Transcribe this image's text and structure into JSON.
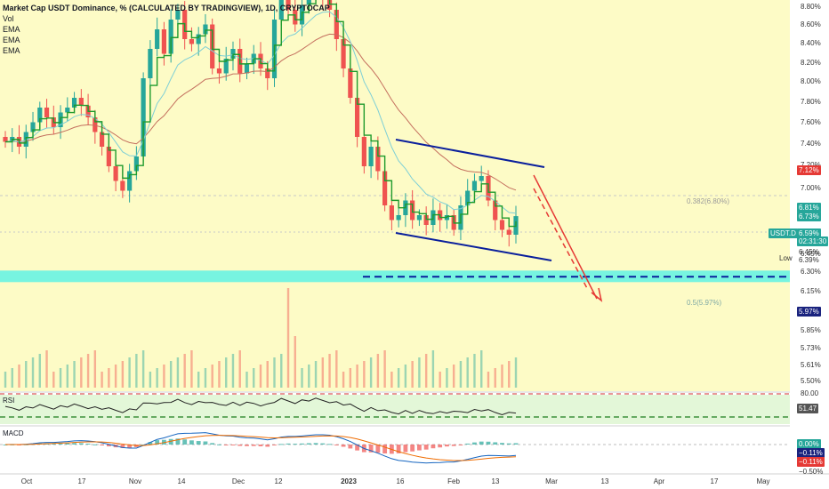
{
  "legend": {
    "title": "Market Cap USDT Dominance, % (CALCULATED BY TRADINGVIEW), 1D, CRYPTOCAP",
    "lines": [
      "Vol",
      "EMA",
      "EMA",
      "EMA"
    ]
  },
  "colors": {
    "up": "#26a69a",
    "down": "#ef5350",
    "ema_fast": "#1f9b2d",
    "ema_mid": "#7ecfd6",
    "ema_slow": "#c46f5e",
    "channel": "#0a1f9c",
    "arrow": "#e53935",
    "fib": "#5ff2e4",
    "bg": "#fdfbc6"
  },
  "price_axis": {
    "ticks": [
      "8.80%",
      "8.60%",
      "8.40%",
      "8.20%",
      "8.00%",
      "7.80%",
      "7.60%",
      "7.40%",
      "7.20%",
      "7.00%",
      "6.80%",
      "6.60%",
      "6.45%",
      "6.30%",
      "6.15%",
      "6.00%",
      "5.85%",
      "5.73%",
      "5.61%",
      "5.50%"
    ],
    "tags": [
      {
        "text": "7.12%",
        "kind": "red"
      },
      {
        "text": "6.81%",
        "kind": "green"
      },
      {
        "text": "6.73%",
        "kind": "green"
      },
      {
        "text": "6.59%",
        "kind": "green"
      },
      {
        "text": "02:31:30",
        "kind": "green"
      },
      {
        "text": "6.45%",
        "kind": "plain"
      },
      {
        "text": "6.39%",
        "kind": "plain"
      },
      {
        "text": "5.97%",
        "kind": "navy"
      }
    ],
    "symbol_label": "USDT.D",
    "low_label": "Low"
  },
  "fib_levels": [
    {
      "label": "0.382(6.80%)"
    },
    {
      "label": "0.5(5.97%)"
    }
  ],
  "rsi": {
    "label": "RSI",
    "upper": "80.00",
    "value": "51.47"
  },
  "macd": {
    "label": "MACD",
    "tags": [
      "0.00%",
      "−0.11%",
      "−0.11%",
      "−0.50%"
    ]
  },
  "x_axis": {
    "labels": [
      "Oct",
      "17",
      "Nov",
      "14",
      "Dec",
      "12",
      "2023",
      "16",
      "Feb",
      "13",
      "Mar",
      "13",
      "Apr",
      "17",
      "May"
    ],
    "bold": "2023"
  },
  "chart_data": {
    "type": "candlestick",
    "timeframe": "1D",
    "y_unit": "%",
    "x_categories": [
      "Oct",
      "17",
      "Nov",
      "14",
      "Dec",
      "12",
      "2023",
      "16",
      "Feb",
      "13",
      "Mar",
      "13",
      "Apr",
      "17",
      "May"
    ],
    "series": [
      {
        "name": "Vol"
      },
      {
        "name": "EMA"
      },
      {
        "name": "EMA"
      },
      {
        "name": "EMA"
      }
    ],
    "close_approx": [
      7.35,
      7.4,
      7.3,
      7.45,
      7.55,
      7.7,
      7.6,
      7.5,
      7.65,
      7.7,
      7.8,
      7.72,
      7.6,
      7.45,
      7.3,
      7.1,
      6.95,
      6.85,
      7.05,
      7.2,
      8.0,
      8.3,
      8.5,
      8.25,
      8.6,
      8.7,
      8.4,
      8.35,
      8.45,
      8.55,
      8.1,
      8.05,
      8.2,
      8.3,
      8.05,
      8.15,
      8.25,
      8.1,
      8.0,
      8.6,
      8.85,
      8.7,
      8.55,
      8.75,
      8.85,
      8.9,
      8.8,
      8.7,
      8.4,
      8.1,
      7.8,
      7.4,
      7.1,
      7.3,
      7.05,
      6.7,
      6.55,
      6.6,
      6.75,
      6.55,
      6.6,
      6.5,
      6.65,
      6.55,
      6.6,
      6.45,
      6.7,
      6.85,
      6.95,
      7.0,
      6.75,
      6.55,
      6.45,
      6.4,
      6.59
    ],
    "last_price": 6.59,
    "high_marker": 7.12,
    "low_marker": 6.39,
    "ema_values": [
      6.81,
      6.73
    ],
    "fib_retracements": [
      {
        "level": 0.382,
        "price": 6.8
      },
      {
        "level": 0.5,
        "price": 5.97
      }
    ],
    "target": 5.97,
    "rsi_value": 51.47,
    "rsi_upper": 80.0,
    "macd_values": [
      0.0,
      -0.11,
      -0.11,
      -0.5
    ]
  }
}
